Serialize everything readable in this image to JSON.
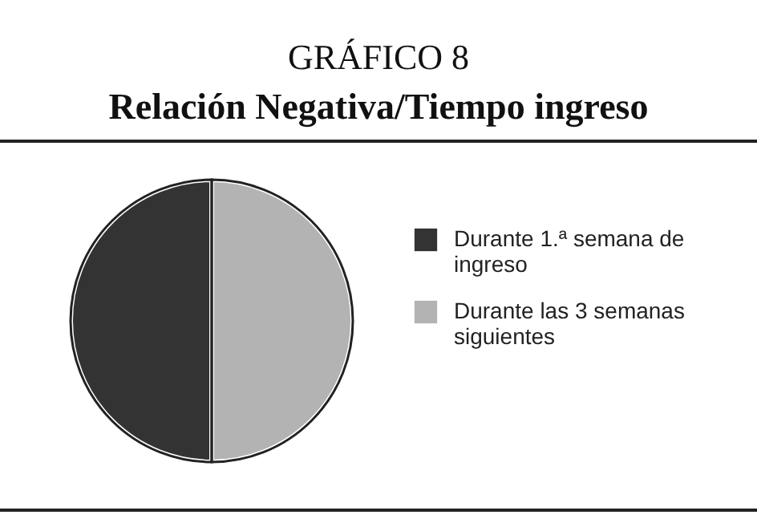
{
  "chart_data": {
    "type": "pie",
    "title": "GRÁFICO 8",
    "subtitle": "Relación Negativa/Tiempo ingreso",
    "categories": [
      "Durante 1.ª semana de ingreso",
      "Durante las 3 semanas siguientes"
    ],
    "values": [
      50,
      50
    ],
    "colors": [
      "#333333",
      "#b3b3b3"
    ],
    "legend": "right"
  }
}
